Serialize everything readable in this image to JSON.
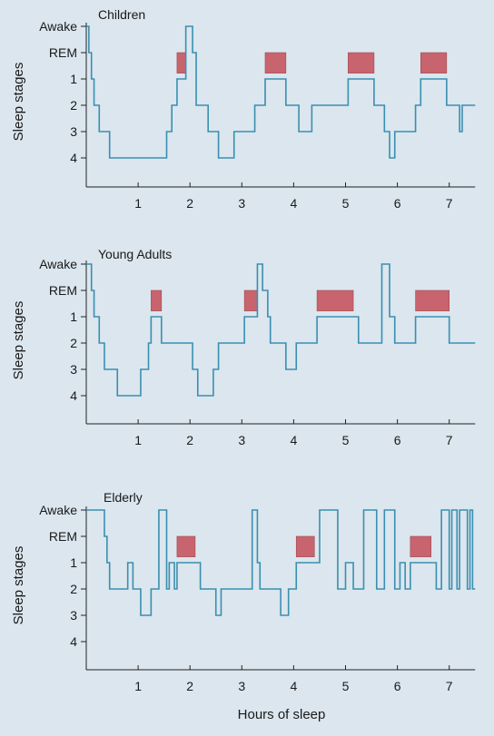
{
  "chart_data": [
    {
      "type": "line",
      "title": "Children",
      "ylabel": "Sleep stages",
      "y_categories": [
        "Awake",
        "REM",
        "1",
        "2",
        "3",
        "4"
      ],
      "x_ticks": [
        1,
        2,
        3,
        4,
        5,
        6,
        7
      ],
      "xlim": [
        0,
        7.5
      ],
      "line_color": "#3a8fb0",
      "rem_color": "#c8646e",
      "hypnogram": [
        [
          0,
          0
        ],
        [
          0.05,
          1
        ],
        [
          0.1,
          2
        ],
        [
          0.15,
          3
        ],
        [
          0.25,
          4
        ],
        [
          0.45,
          5
        ],
        [
          1.55,
          4
        ],
        [
          1.65,
          3
        ],
        [
          1.75,
          2
        ],
        [
          1.92,
          0
        ],
        [
          2.05,
          1
        ],
        [
          2.12,
          3
        ],
        [
          2.35,
          4
        ],
        [
          2.55,
          5
        ],
        [
          2.85,
          4
        ],
        [
          3.25,
          3
        ],
        [
          3.45,
          2
        ],
        [
          3.85,
          3
        ],
        [
          4.1,
          4
        ],
        [
          4.35,
          3
        ],
        [
          5.05,
          2
        ],
        [
          5.55,
          3
        ],
        [
          5.75,
          4
        ],
        [
          5.85,
          5
        ],
        [
          5.95,
          4
        ],
        [
          6.35,
          3
        ],
        [
          6.45,
          2
        ],
        [
          6.95,
          3
        ],
        [
          7.2,
          4
        ],
        [
          7.25,
          3
        ],
        [
          7.3,
          3
        ],
        [
          7.5,
          3
        ]
      ],
      "rem_periods": [
        [
          1.75,
          1.92
        ],
        [
          3.45,
          3.85
        ],
        [
          5.05,
          5.55
        ],
        [
          6.45,
          6.95
        ]
      ]
    },
    {
      "type": "line",
      "title": "Young Adults",
      "ylabel": "Sleep stages",
      "y_categories": [
        "Awake",
        "REM",
        "1",
        "2",
        "3",
        "4"
      ],
      "x_ticks": [
        1,
        2,
        3,
        4,
        5,
        6,
        7
      ],
      "xlim": [
        0,
        7.5
      ],
      "line_color": "#3a8fb0",
      "rem_color": "#c8646e",
      "hypnogram": [
        [
          0,
          0
        ],
        [
          0.1,
          1
        ],
        [
          0.15,
          2
        ],
        [
          0.25,
          3
        ],
        [
          0.35,
          4
        ],
        [
          0.6,
          5
        ],
        [
          1.05,
          4
        ],
        [
          1.2,
          3
        ],
        [
          1.25,
          2
        ],
        [
          1.45,
          3
        ],
        [
          2.05,
          4
        ],
        [
          2.15,
          5
        ],
        [
          2.45,
          4
        ],
        [
          2.55,
          3
        ],
        [
          3.05,
          2
        ],
        [
          3.3,
          0
        ],
        [
          3.4,
          1
        ],
        [
          3.5,
          2
        ],
        [
          3.55,
          3
        ],
        [
          3.85,
          4
        ],
        [
          4.05,
          3
        ],
        [
          4.45,
          2
        ],
        [
          5.15,
          2
        ],
        [
          5.25,
          3
        ],
        [
          5.65,
          3
        ],
        [
          5.7,
          0
        ],
        [
          5.85,
          2
        ],
        [
          5.95,
          3
        ],
        [
          6.35,
          2
        ],
        [
          7.0,
          3
        ],
        [
          7.5,
          3
        ]
      ],
      "rem_periods": [
        [
          1.25,
          1.45
        ],
        [
          3.05,
          3.3
        ],
        [
          4.45,
          5.15
        ],
        [
          6.35,
          7.0
        ]
      ]
    },
    {
      "type": "line",
      "title": "Elderly",
      "ylabel": "Sleep stages",
      "y_categories": [
        "Awake",
        "REM",
        "1",
        "2",
        "3",
        "4"
      ],
      "x_ticks": [
        1,
        2,
        3,
        4,
        5,
        6,
        7
      ],
      "xlim": [
        0,
        7.5
      ],
      "xlabel": "Hours of sleep",
      "line_color": "#3a8fb0",
      "rem_color": "#c8646e",
      "hypnogram": [
        [
          0,
          0
        ],
        [
          0.35,
          1
        ],
        [
          0.4,
          2
        ],
        [
          0.45,
          3
        ],
        [
          0.8,
          2
        ],
        [
          0.9,
          3
        ],
        [
          1.05,
          4
        ],
        [
          1.25,
          3
        ],
        [
          1.4,
          0
        ],
        [
          1.55,
          3
        ],
        [
          1.6,
          2
        ],
        [
          1.7,
          3
        ],
        [
          1.75,
          2
        ],
        [
          2.1,
          2
        ],
        [
          2.2,
          3
        ],
        [
          2.5,
          4
        ],
        [
          2.6,
          3
        ],
        [
          3.2,
          0
        ],
        [
          3.3,
          2
        ],
        [
          3.35,
          3
        ],
        [
          3.75,
          4
        ],
        [
          3.9,
          3
        ],
        [
          4.05,
          2
        ],
        [
          4.4,
          2
        ],
        [
          4.5,
          0
        ],
        [
          4.85,
          3
        ],
        [
          5.0,
          2
        ],
        [
          5.15,
          3
        ],
        [
          5.35,
          0
        ],
        [
          5.6,
          3
        ],
        [
          5.75,
          0
        ],
        [
          5.95,
          3
        ],
        [
          6.05,
          2
        ],
        [
          6.15,
          3
        ],
        [
          6.25,
          2
        ],
        [
          6.65,
          2
        ],
        [
          6.75,
          3
        ],
        [
          6.85,
          0
        ],
        [
          7.0,
          3
        ],
        [
          7.05,
          0
        ],
        [
          7.15,
          3
        ],
        [
          7.2,
          0
        ],
        [
          7.35,
          3
        ],
        [
          7.4,
          0
        ],
        [
          7.45,
          3
        ],
        [
          7.5,
          3
        ]
      ],
      "rem_periods": [
        [
          1.75,
          2.1
        ],
        [
          4.05,
          4.4
        ],
        [
          6.25,
          6.65
        ]
      ]
    }
  ]
}
